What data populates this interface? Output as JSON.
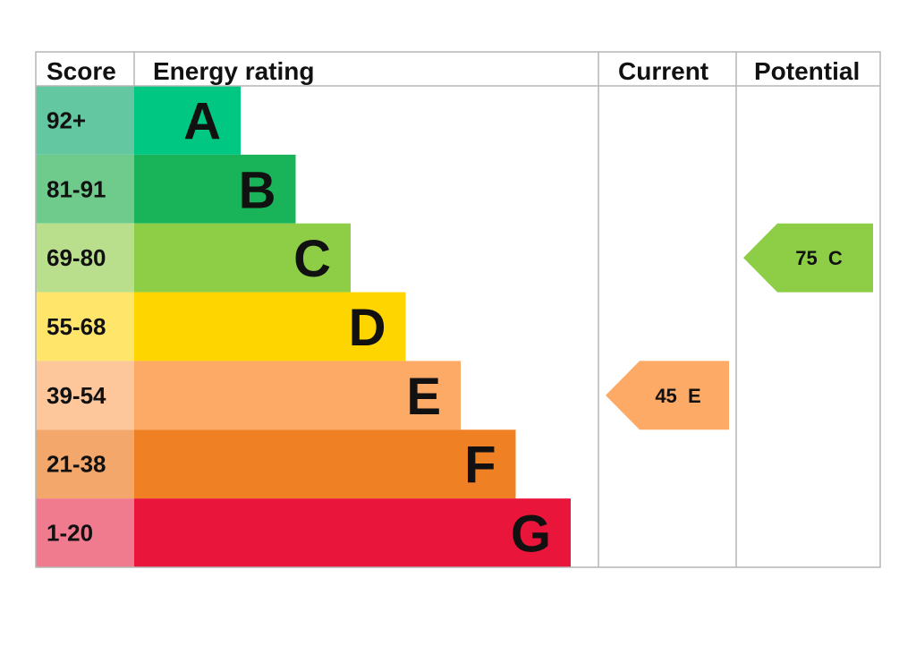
{
  "headers": {
    "score": "Score",
    "energy_rating": "Energy rating",
    "current": "Current",
    "potential": "Potential"
  },
  "chart_data": {
    "type": "bar",
    "title": "",
    "bands": [
      {
        "score": "92+",
        "letter": "A",
        "color": "#00c781",
        "score_bg": "#63c8a2"
      },
      {
        "score": "81-91",
        "letter": "B",
        "color": "#19b459",
        "score_bg": "#6fcb8c"
      },
      {
        "score": "69-80",
        "letter": "C",
        "color": "#8dce46",
        "score_bg": "#b9df8d"
      },
      {
        "score": "55-68",
        "letter": "D",
        "color": "#ffd500",
        "score_bg": "#ffe56a"
      },
      {
        "score": "39-54",
        "letter": "E",
        "color": "#fcaa65",
        "score_bg": "#fdc79b"
      },
      {
        "score": "21-38",
        "letter": "F",
        "color": "#ef8023",
        "score_bg": "#f3a76b"
      },
      {
        "score": "1-20",
        "letter": "G",
        "color": "#e9153b",
        "score_bg": "#f07a8e"
      }
    ],
    "current": {
      "value": "45",
      "letter": "E",
      "label": "45  E",
      "color": "#fcaa65"
    },
    "potential": {
      "value": "75",
      "letter": "C",
      "label": "75  C",
      "color": "#8dce46"
    }
  }
}
